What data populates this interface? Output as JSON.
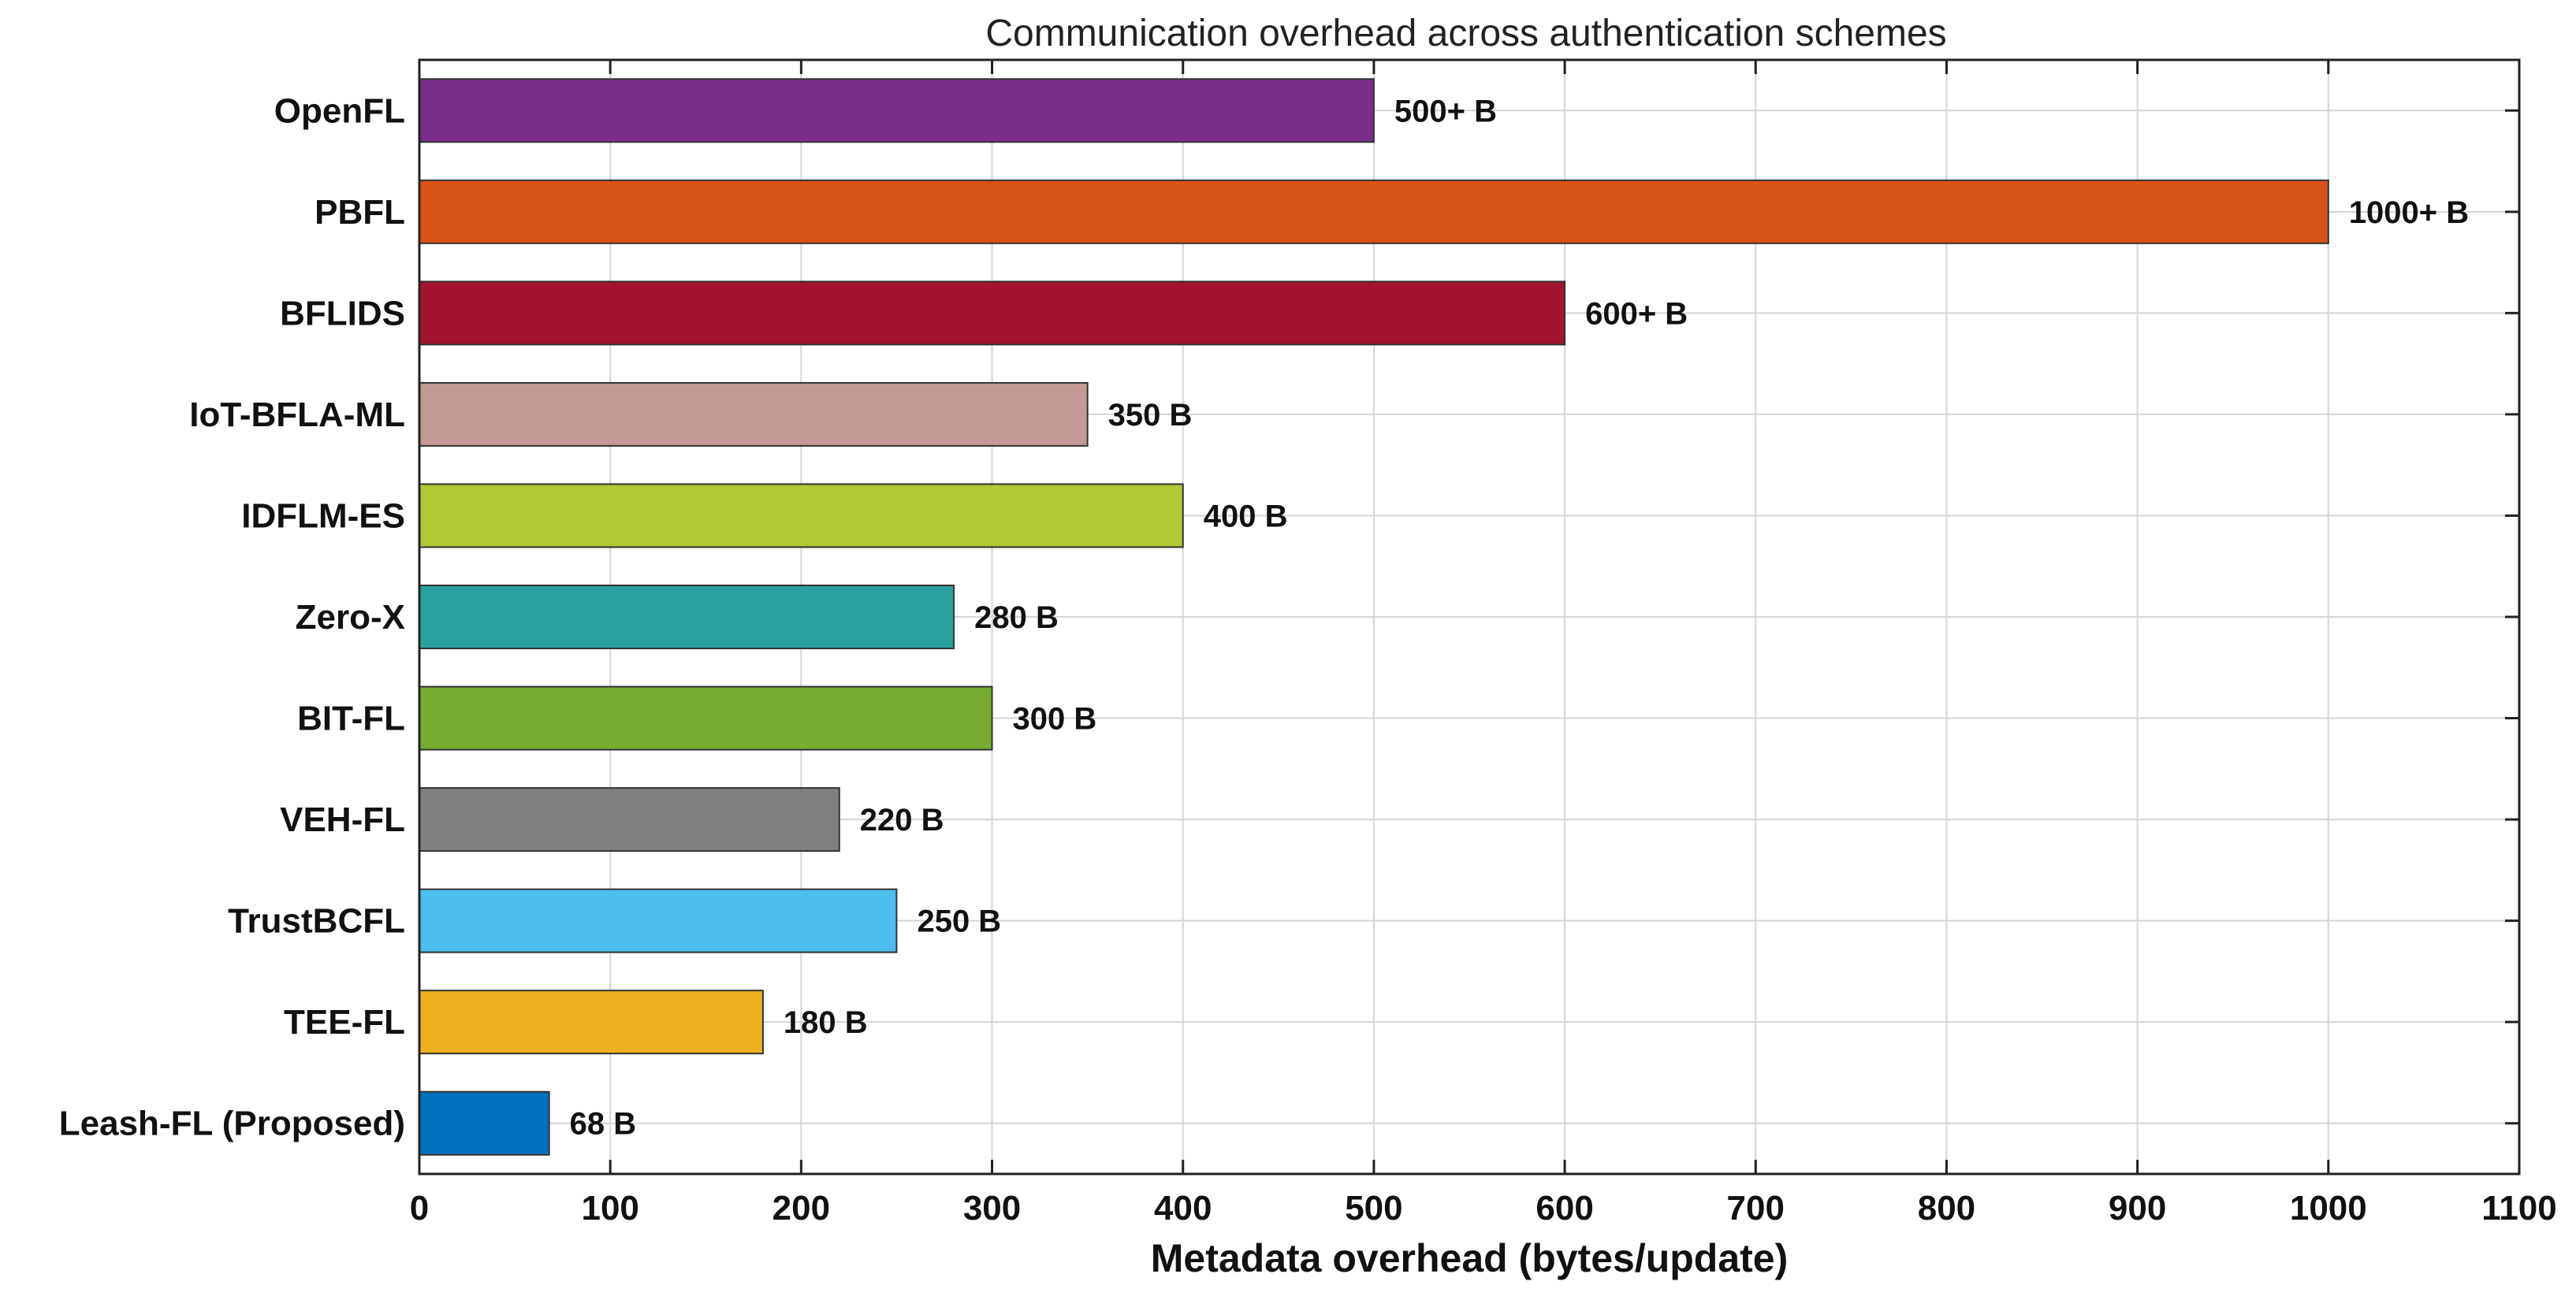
{
  "chart_data": {
    "type": "bar",
    "orientation": "horizontal",
    "title": "Communication overhead across authentication schemes",
    "xlabel": "Metadata overhead (bytes/update)",
    "ylabel": "",
    "xlim": [
      0,
      1100
    ],
    "xticks": [
      "0",
      "100",
      "200",
      "300",
      "400",
      "500",
      "600",
      "700",
      "800",
      "900",
      "1000",
      "1100"
    ],
    "grid": true,
    "categories": [
      "OpenFL",
      "PBFL",
      "BFLIDS",
      "IoT-BFLA-ML",
      "IDFLM-ES",
      "Zero-X",
      "BIT-FL",
      "VEH-FL",
      "TrustBCFL",
      "TEE-FL",
      "Leash-FL (Proposed)"
    ],
    "values": [
      500,
      1000,
      600,
      350,
      400,
      280,
      300,
      220,
      250,
      180,
      68
    ],
    "data_labels": [
      "500+ B",
      "1000+ B",
      "600+ B",
      "350 B",
      "400 B",
      "280 B",
      "300 B",
      "220 B",
      "250 B",
      "180 B",
      "68 B"
    ],
    "colors": [
      "#7B2D8C",
      "#D95319",
      "#A2142F",
      "#C49A96",
      "#B0C934",
      "#2AA19E",
      "#77AC30",
      "#808080",
      "#4DBEEE",
      "#EDB120",
      "#0072BD"
    ]
  }
}
